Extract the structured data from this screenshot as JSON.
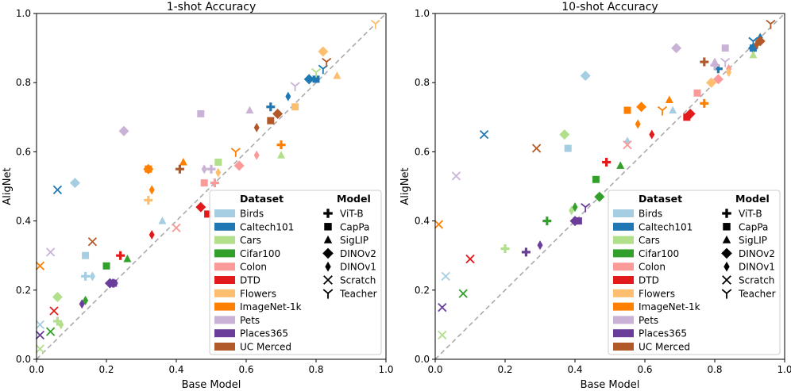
{
  "chart_data": [
    {
      "type": "scatter",
      "title": "1-shot Accuracy",
      "xlabel": "Base Model",
      "ylabel": "AligNet",
      "xlim": [
        0,
        1
      ],
      "ylim": [
        0,
        1
      ],
      "diagonal": "y = x (dashed)",
      "points": [
        {
          "dataset": "Birds",
          "model": "ViT-B",
          "x": 0.14,
          "y": 0.24
        },
        {
          "dataset": "Birds",
          "model": "CapPa",
          "x": 0.14,
          "y": 0.3
        },
        {
          "dataset": "Birds",
          "model": "SigLIP",
          "x": 0.36,
          "y": 0.4
        },
        {
          "dataset": "Birds",
          "model": "DINOv2",
          "x": 0.11,
          "y": 0.51
        },
        {
          "dataset": "Birds",
          "model": "DINOv1",
          "x": 0.16,
          "y": 0.24
        },
        {
          "dataset": "Birds",
          "model": "Scratch",
          "x": 0.01,
          "y": 0.1
        },
        {
          "dataset": "Birds",
          "model": "Teacher",
          "x": 0.82,
          "y": 0.84
        },
        {
          "dataset": "Caltech101",
          "model": "ViT-B",
          "x": 0.67,
          "y": 0.73
        },
        {
          "dataset": "Caltech101",
          "model": "CapPa",
          "x": 0.8,
          "y": 0.81
        },
        {
          "dataset": "Caltech101",
          "model": "DINOv2",
          "x": 0.78,
          "y": 0.81
        },
        {
          "dataset": "Caltech101",
          "model": "DINOv1",
          "x": 0.72,
          "y": 0.76
        },
        {
          "dataset": "Caltech101",
          "model": "Scratch",
          "x": 0.06,
          "y": 0.49
        },
        {
          "dataset": "Caltech101",
          "model": "Teacher",
          "x": 0.82,
          "y": 0.84
        },
        {
          "dataset": "Cars",
          "model": "ViT-B",
          "x": 0.06,
          "y": 0.11
        },
        {
          "dataset": "Cars",
          "model": "CapPa",
          "x": 0.52,
          "y": 0.57
        },
        {
          "dataset": "Cars",
          "model": "SigLIP",
          "x": 0.7,
          "y": 0.59
        },
        {
          "dataset": "Cars",
          "model": "DINOv2",
          "x": 0.06,
          "y": 0.18
        },
        {
          "dataset": "Cars",
          "model": "DINOv1",
          "x": 0.07,
          "y": 0.1
        },
        {
          "dataset": "Cars",
          "model": "Scratch",
          "x": 0.01,
          "y": 0.03
        },
        {
          "dataset": "Cars",
          "model": "Teacher",
          "x": 0.8,
          "y": 0.83
        },
        {
          "dataset": "Cifar100",
          "model": "CapPa",
          "x": 0.2,
          "y": 0.27
        },
        {
          "dataset": "Cifar100",
          "model": "SigLIP",
          "x": 0.26,
          "y": 0.29
        },
        {
          "dataset": "Cifar100",
          "model": "DINOv1",
          "x": 0.14,
          "y": 0.17
        },
        {
          "dataset": "Cifar100",
          "model": "Scratch",
          "x": 0.04,
          "y": 0.08
        },
        {
          "dataset": "Colon",
          "model": "ViT-B",
          "x": 0.51,
          "y": 0.51
        },
        {
          "dataset": "Colon",
          "model": "CapPa",
          "x": 0.48,
          "y": 0.51
        },
        {
          "dataset": "Colon",
          "model": "DINOv2",
          "x": 0.58,
          "y": 0.56
        },
        {
          "dataset": "Colon",
          "model": "DINOv1",
          "x": 0.63,
          "y": 0.59
        },
        {
          "dataset": "Colon",
          "model": "Scratch",
          "x": 0.4,
          "y": 0.38
        },
        {
          "dataset": "DTD",
          "model": "ViT-B",
          "x": 0.24,
          "y": 0.3
        },
        {
          "dataset": "DTD",
          "model": "CapPa",
          "x": 0.49,
          "y": 0.42
        },
        {
          "dataset": "DTD",
          "model": "DINOv2",
          "x": 0.47,
          "y": 0.44
        },
        {
          "dataset": "DTD",
          "model": "DINOv1",
          "x": 0.33,
          "y": 0.36
        },
        {
          "dataset": "DTD",
          "model": "Scratch",
          "x": 0.05,
          "y": 0.14
        },
        {
          "dataset": "Flowers",
          "model": "ViT-B",
          "x": 0.32,
          "y": 0.46
        },
        {
          "dataset": "Flowers",
          "model": "CapPa",
          "x": 0.74,
          "y": 0.73
        },
        {
          "dataset": "Flowers",
          "model": "SigLIP",
          "x": 0.86,
          "y": 0.82
        },
        {
          "dataset": "Flowers",
          "model": "DINOv2",
          "x": 0.82,
          "y": 0.89
        },
        {
          "dataset": "Flowers",
          "model": "DINOv1",
          "x": 0.52,
          "y": 0.54
        },
        {
          "dataset": "Flowers",
          "model": "Teacher",
          "x": 0.97,
          "y": 0.97
        },
        {
          "dataset": "ImageNet-1k",
          "model": "ViT-B",
          "x": 0.7,
          "y": 0.62
        },
        {
          "dataset": "ImageNet-1k",
          "model": "CapPa",
          "x": 0.32,
          "y": 0.55
        },
        {
          "dataset": "ImageNet-1k",
          "model": "SigLIP",
          "x": 0.42,
          "y": 0.57
        },
        {
          "dataset": "ImageNet-1k",
          "model": "DINOv2",
          "x": 0.32,
          "y": 0.55
        },
        {
          "dataset": "ImageNet-1k",
          "model": "DINOv1",
          "x": 0.33,
          "y": 0.49
        },
        {
          "dataset": "ImageNet-1k",
          "model": "Scratch",
          "x": 0.01,
          "y": 0.27
        },
        {
          "dataset": "ImageNet-1k",
          "model": "Teacher",
          "x": 0.57,
          "y": 0.6
        },
        {
          "dataset": "Pets",
          "model": "ViT-B",
          "x": 0.5,
          "y": 0.55
        },
        {
          "dataset": "Pets",
          "model": "CapPa",
          "x": 0.47,
          "y": 0.71
        },
        {
          "dataset": "Pets",
          "model": "SigLIP",
          "x": 0.61,
          "y": 0.72
        },
        {
          "dataset": "Pets",
          "model": "DINOv2",
          "x": 0.25,
          "y": 0.66
        },
        {
          "dataset": "Pets",
          "model": "DINOv1",
          "x": 0.48,
          "y": 0.55
        },
        {
          "dataset": "Pets",
          "model": "Scratch",
          "x": 0.04,
          "y": 0.31
        },
        {
          "dataset": "Pets",
          "model": "Teacher",
          "x": 0.74,
          "y": 0.79
        },
        {
          "dataset": "Places365",
          "model": "ViT-B",
          "x": 0.22,
          "y": 0.22
        },
        {
          "dataset": "Places365",
          "model": "CapPa",
          "x": 0.22,
          "y": 0.22
        },
        {
          "dataset": "Places365",
          "model": "DINOv2",
          "x": 0.21,
          "y": 0.22
        },
        {
          "dataset": "Places365",
          "model": "DINOv1",
          "x": 0.13,
          "y": 0.16
        },
        {
          "dataset": "Places365",
          "model": "Scratch",
          "x": 0.01,
          "y": 0.07
        },
        {
          "dataset": "UC Merced",
          "model": "ViT-B",
          "x": 0.41,
          "y": 0.55
        },
        {
          "dataset": "UC Merced",
          "model": "CapPa",
          "x": 0.67,
          "y": 0.69
        },
        {
          "dataset": "UC Merced",
          "model": "DINOv2",
          "x": 0.69,
          "y": 0.71
        },
        {
          "dataset": "UC Merced",
          "model": "DINOv1",
          "x": 0.63,
          "y": 0.67
        },
        {
          "dataset": "UC Merced",
          "model": "Scratch",
          "x": 0.16,
          "y": 0.34
        },
        {
          "dataset": "UC Merced",
          "model": "Teacher",
          "x": 0.83,
          "y": 0.86
        }
      ]
    },
    {
      "type": "scatter",
      "title": "10-shot Accuracy",
      "xlabel": "Base Model",
      "ylabel": "AligNet",
      "xlim": [
        0,
        1
      ],
      "ylim": [
        0,
        1
      ],
      "diagonal": "y = x (dashed)",
      "points": [
        {
          "dataset": "Birds",
          "model": "CapPa",
          "x": 0.38,
          "y": 0.61
        },
        {
          "dataset": "Birds",
          "model": "SigLIP",
          "x": 0.68,
          "y": 0.72
        },
        {
          "dataset": "Birds",
          "model": "DINOv2",
          "x": 0.43,
          "y": 0.82
        },
        {
          "dataset": "Birds",
          "model": "DINOv1",
          "x": 0.55,
          "y": 0.63
        },
        {
          "dataset": "Birds",
          "model": "Scratch",
          "x": 0.03,
          "y": 0.24
        },
        {
          "dataset": "Birds",
          "model": "Teacher",
          "x": 0.91,
          "y": 0.92
        },
        {
          "dataset": "Caltech101",
          "model": "ViT-B",
          "x": 0.81,
          "y": 0.84
        },
        {
          "dataset": "Caltech101",
          "model": "CapPa",
          "x": 0.91,
          "y": 0.9
        },
        {
          "dataset": "Caltech101",
          "model": "DINOv2",
          "x": 0.91,
          "y": 0.9
        },
        {
          "dataset": "Caltech101",
          "model": "DINOv1",
          "x": 0.93,
          "y": 0.93
        },
        {
          "dataset": "Caltech101",
          "model": "Scratch",
          "x": 0.14,
          "y": 0.65
        },
        {
          "dataset": "Caltech101",
          "model": "Teacher",
          "x": 0.91,
          "y": 0.92
        },
        {
          "dataset": "Cars",
          "model": "ViT-B",
          "x": 0.2,
          "y": 0.32
        },
        {
          "dataset": "Cars",
          "model": "SigLIP",
          "x": 0.91,
          "y": 0.88
        },
        {
          "dataset": "Cars",
          "model": "DINOv2",
          "x": 0.37,
          "y": 0.65
        },
        {
          "dataset": "Cars",
          "model": "DINOv1",
          "x": 0.39,
          "y": 0.43
        },
        {
          "dataset": "Cars",
          "model": "Scratch",
          "x": 0.02,
          "y": 0.07
        },
        {
          "dataset": "Cifar100",
          "model": "ViT-B",
          "x": 0.32,
          "y": 0.4
        },
        {
          "dataset": "Cifar100",
          "model": "CapPa",
          "x": 0.46,
          "y": 0.52
        },
        {
          "dataset": "Cifar100",
          "model": "SigLIP",
          "x": 0.53,
          "y": 0.56
        },
        {
          "dataset": "Cifar100",
          "model": "DINOv2",
          "x": 0.47,
          "y": 0.47
        },
        {
          "dataset": "Cifar100",
          "model": "DINOv1",
          "x": 0.4,
          "y": 0.44
        },
        {
          "dataset": "Cifar100",
          "model": "Scratch",
          "x": 0.08,
          "y": 0.19
        },
        {
          "dataset": "Colon",
          "model": "CapPa",
          "x": 0.75,
          "y": 0.77
        },
        {
          "dataset": "Colon",
          "model": "DINOv2",
          "x": 0.81,
          "y": 0.81
        },
        {
          "dataset": "Colon",
          "model": "DINOv1",
          "x": 0.84,
          "y": 0.84
        },
        {
          "dataset": "Colon",
          "model": "Scratch",
          "x": 0.55,
          "y": 0.62
        },
        {
          "dataset": "DTD",
          "model": "ViT-B",
          "x": 0.49,
          "y": 0.57
        },
        {
          "dataset": "DTD",
          "model": "CapPa",
          "x": 0.72,
          "y": 0.7
        },
        {
          "dataset": "DTD",
          "model": "DINOv2",
          "x": 0.73,
          "y": 0.71
        },
        {
          "dataset": "DTD",
          "model": "DINOv1",
          "x": 0.62,
          "y": 0.65
        },
        {
          "dataset": "DTD",
          "model": "Scratch",
          "x": 0.1,
          "y": 0.29
        },
        {
          "dataset": "Flowers",
          "model": "DINOv2",
          "x": 0.79,
          "y": 0.8
        },
        {
          "dataset": "Flowers",
          "model": "DINOv1",
          "x": 0.84,
          "y": 0.83
        },
        {
          "dataset": "ImageNet-1k",
          "model": "ViT-B",
          "x": 0.77,
          "y": 0.74
        },
        {
          "dataset": "ImageNet-1k",
          "model": "CapPa",
          "x": 0.55,
          "y": 0.72
        },
        {
          "dataset": "ImageNet-1k",
          "model": "SigLIP",
          "x": 0.67,
          "y": 0.75
        },
        {
          "dataset": "ImageNet-1k",
          "model": "DINOv2",
          "x": 0.59,
          "y": 0.73
        },
        {
          "dataset": "ImageNet-1k",
          "model": "DINOv1",
          "x": 0.58,
          "y": 0.68
        },
        {
          "dataset": "ImageNet-1k",
          "model": "Scratch",
          "x": 0.01,
          "y": 0.39
        },
        {
          "dataset": "ImageNet-1k",
          "model": "Teacher",
          "x": 0.65,
          "y": 0.72
        },
        {
          "dataset": "Pets",
          "model": "ViT-B",
          "x": 0.8,
          "y": 0.85
        },
        {
          "dataset": "Pets",
          "model": "CapPa",
          "x": 0.83,
          "y": 0.9
        },
        {
          "dataset": "Pets",
          "model": "SigLIP",
          "x": 0.8,
          "y": 0.86
        },
        {
          "dataset": "Pets",
          "model": "DINOv2",
          "x": 0.69,
          "y": 0.9
        },
        {
          "dataset": "Pets",
          "model": "Scratch",
          "x": 0.06,
          "y": 0.53
        },
        {
          "dataset": "Pets",
          "model": "Teacher",
          "x": 0.83,
          "y": 0.86
        },
        {
          "dataset": "Places365",
          "model": "ViT-B",
          "x": 0.26,
          "y": 0.31
        },
        {
          "dataset": "Places365",
          "model": "CapPa",
          "x": 0.41,
          "y": 0.4
        },
        {
          "dataset": "Places365",
          "model": "DINOv2",
          "x": 0.4,
          "y": 0.4
        },
        {
          "dataset": "Places365",
          "model": "DINOv1",
          "x": 0.3,
          "y": 0.33
        },
        {
          "dataset": "Places365",
          "model": "Scratch",
          "x": 0.02,
          "y": 0.15
        },
        {
          "dataset": "Places365",
          "model": "Teacher",
          "x": 0.43,
          "y": 0.44
        },
        {
          "dataset": "UC Merced",
          "model": "ViT-B",
          "x": 0.77,
          "y": 0.86
        },
        {
          "dataset": "UC Merced",
          "model": "DINOv2",
          "x": 0.93,
          "y": 0.92
        },
        {
          "dataset": "UC Merced",
          "model": "DINOv1",
          "x": 0.92,
          "y": 0.91
        },
        {
          "dataset": "UC Merced",
          "model": "Scratch",
          "x": 0.29,
          "y": 0.61
        },
        {
          "dataset": "UC Merced",
          "model": "Teacher",
          "x": 0.96,
          "y": 0.97
        }
      ]
    }
  ],
  "ticks": [
    "0.0",
    "0.2",
    "0.4",
    "0.6",
    "0.8",
    "1.0"
  ],
  "legend": {
    "dataset_title": "Dataset",
    "model_title": "Model",
    "datasets": [
      {
        "name": "Birds",
        "color": "#a6cee3"
      },
      {
        "name": "Caltech101",
        "color": "#1f78b4"
      },
      {
        "name": "Cars",
        "color": "#b2df8a"
      },
      {
        "name": "Cifar100",
        "color": "#33a02c"
      },
      {
        "name": "Colon",
        "color": "#fb9a99"
      },
      {
        "name": "DTD",
        "color": "#e31a1c"
      },
      {
        "name": "Flowers",
        "color": "#fdbf6f"
      },
      {
        "name": "ImageNet-1k",
        "color": "#ff7f00"
      },
      {
        "name": "Pets",
        "color": "#cab2d6"
      },
      {
        "name": "Places365",
        "color": "#6a3d9a"
      },
      {
        "name": "UC Merced",
        "color": "#b15928"
      }
    ],
    "models": [
      {
        "name": "ViT-B",
        "icon": "plus-icon"
      },
      {
        "name": "CapPa",
        "icon": "square-icon"
      },
      {
        "name": "SigLIP",
        "icon": "triangle-icon"
      },
      {
        "name": "DINOv2",
        "icon": "diamond-icon"
      },
      {
        "name": "DINOv1",
        "icon": "thin-diamond-icon"
      },
      {
        "name": "Scratch",
        "icon": "x-icon"
      },
      {
        "name": "Teacher",
        "icon": "tri-down-icon"
      }
    ]
  }
}
